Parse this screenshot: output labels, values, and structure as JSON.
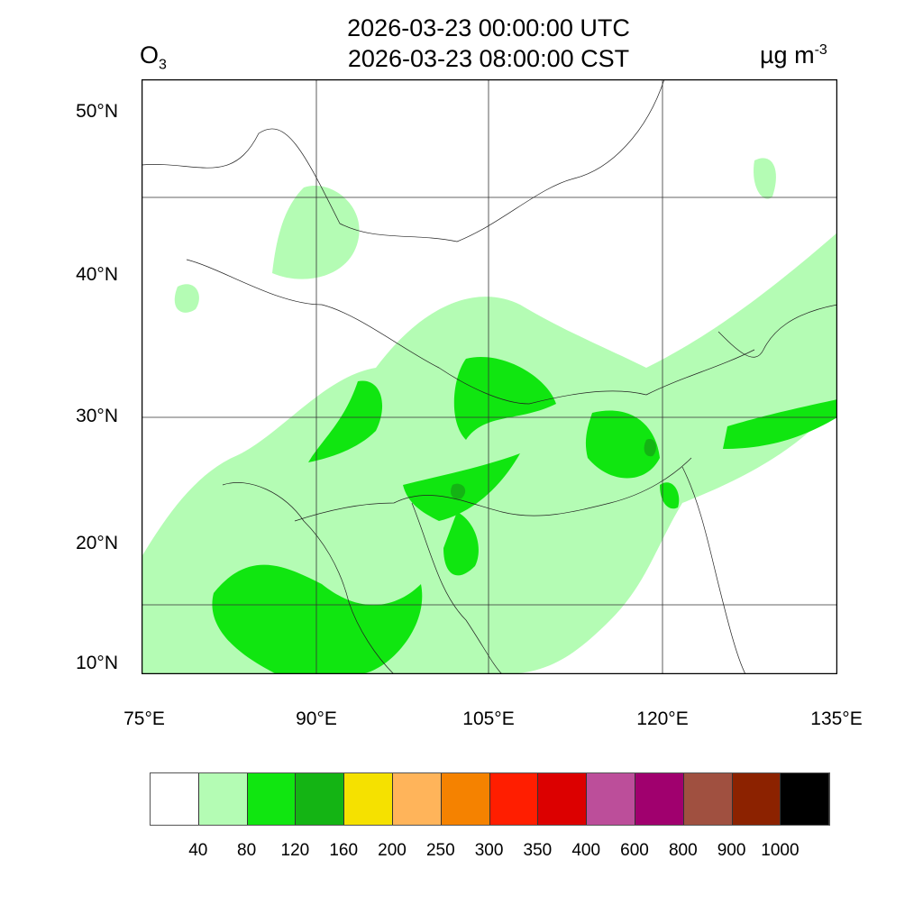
{
  "header": {
    "variable": "O",
    "variable_sub": "3",
    "title_utc": "2026-03-23 00:00:00 UTC",
    "title_local": "2026-03-23 08:00:00 CST",
    "unit": "µg m",
    "unit_sup": "-3"
  },
  "axes": {
    "lat_labels": [
      "50°N",
      "40°N",
      "30°N",
      "20°N",
      "10°N"
    ],
    "lon_labels": [
      "75°E",
      "90°E",
      "105°E",
      "120°E",
      "135°E"
    ]
  },
  "legend": {
    "colors": [
      "#ffffff",
      "#b4fcb4",
      "#10e610",
      "#14b414",
      "#f5e100",
      "#ffb45a",
      "#f58200",
      "#ff1e00",
      "#dc0000",
      "#bc4e9a",
      "#a0006e",
      "#a05040",
      "#8c2200",
      "#000000"
    ],
    "labels": [
      "40",
      "80",
      "120",
      "160",
      "200",
      "250",
      "300",
      "350",
      "400",
      "600",
      "800",
      "900",
      "1000"
    ]
  }
}
